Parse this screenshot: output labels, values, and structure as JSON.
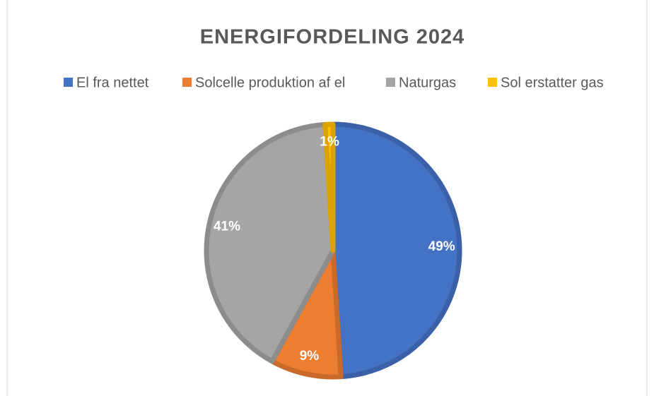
{
  "chart_data": {
    "type": "pie",
    "title": "ENERGIFORDELING 2024",
    "categories": [
      "El fra nettet",
      "Solcelle produktion af el",
      "Naturgas",
      "Sol erstatter gas"
    ],
    "values": [
      49,
      9,
      41,
      1
    ],
    "value_labels": [
      "49%",
      "9%",
      "41%",
      "1%"
    ],
    "colors": [
      "#4472c4",
      "#ed7d31",
      "#a5a5a5",
      "#ffc000"
    ],
    "legend": "top"
  }
}
